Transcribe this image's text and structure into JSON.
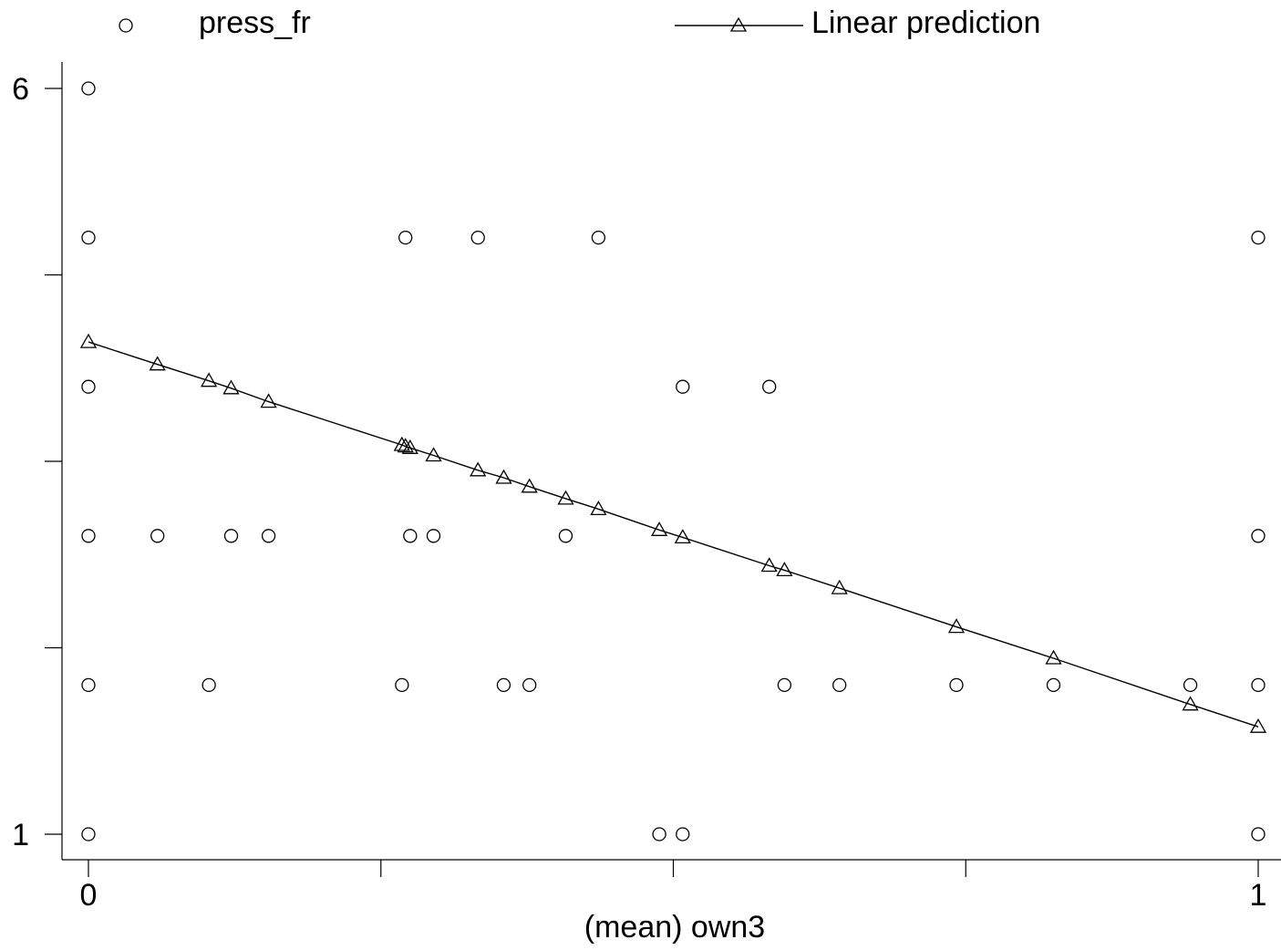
{
  "chart_data": {
    "type": "scatter",
    "xlabel": "(mean) own3",
    "ylabel": "",
    "xlim": [
      0,
      1
    ],
    "ylim": [
      1,
      6
    ],
    "x_ticks": [
      {
        "value": 0,
        "label": "0"
      },
      {
        "value": 0.25,
        "label": ""
      },
      {
        "value": 0.5,
        "label": ""
      },
      {
        "value": 0.75,
        "label": ""
      },
      {
        "value": 1,
        "label": "1"
      }
    ],
    "y_ticks": [
      {
        "value": 1,
        "label": "1"
      },
      {
        "value": 2.25,
        "label": ""
      },
      {
        "value": 3.5,
        "label": ""
      },
      {
        "value": 4.75,
        "label": ""
      },
      {
        "value": 6,
        "label": "6"
      }
    ],
    "legend": {
      "position": "top",
      "entries": [
        {
          "label": "press_fr",
          "marker": "circle",
          "line": false
        },
        {
          "label": "Linear prediction",
          "marker": "triangle",
          "line": true
        }
      ]
    },
    "series": [
      {
        "name": "press_fr",
        "marker": "circle",
        "points": [
          {
            "x": 0,
            "y": 6
          },
          {
            "x": 0,
            "y": 5
          },
          {
            "x": 0,
            "y": 4
          },
          {
            "x": 0,
            "y": 3
          },
          {
            "x": 0,
            "y": 2
          },
          {
            "x": 0,
            "y": 1
          },
          {
            "x": 0.271,
            "y": 5
          },
          {
            "x": 0.333,
            "y": 5
          },
          {
            "x": 0.436,
            "y": 5
          },
          {
            "x": 1,
            "y": 5
          },
          {
            "x": 0.508,
            "y": 4
          },
          {
            "x": 0.582,
            "y": 4
          },
          {
            "x": 0.059,
            "y": 3
          },
          {
            "x": 0.122,
            "y": 3
          },
          {
            "x": 0.154,
            "y": 3
          },
          {
            "x": 0.275,
            "y": 3
          },
          {
            "x": 0.295,
            "y": 3
          },
          {
            "x": 0.408,
            "y": 3
          },
          {
            "x": 1,
            "y": 3
          },
          {
            "x": 0.103,
            "y": 2
          },
          {
            "x": 0.268,
            "y": 2
          },
          {
            "x": 0.355,
            "y": 2
          },
          {
            "x": 0.377,
            "y": 2
          },
          {
            "x": 0.595,
            "y": 2
          },
          {
            "x": 0.642,
            "y": 2
          },
          {
            "x": 0.742,
            "y": 2
          },
          {
            "x": 0.825,
            "y": 2
          },
          {
            "x": 0.942,
            "y": 2
          },
          {
            "x": 1,
            "y": 2
          },
          {
            "x": 0.488,
            "y": 1
          },
          {
            "x": 0.508,
            "y": 1
          },
          {
            "x": 1,
            "y": 1
          }
        ]
      },
      {
        "name": "Linear prediction",
        "marker": "triangle",
        "points": [
          {
            "x": 0,
            "y": 4.3
          },
          {
            "x": 0.059,
            "y": 4.15
          },
          {
            "x": 0.103,
            "y": 4.04
          },
          {
            "x": 0.122,
            "y": 3.99
          },
          {
            "x": 0.154,
            "y": 3.9
          },
          {
            "x": 0.268,
            "y": 3.61
          },
          {
            "x": 0.271,
            "y": 3.6
          },
          {
            "x": 0.275,
            "y": 3.59
          },
          {
            "x": 0.295,
            "y": 3.54
          },
          {
            "x": 0.333,
            "y": 3.44
          },
          {
            "x": 0.355,
            "y": 3.39
          },
          {
            "x": 0.377,
            "y": 3.33
          },
          {
            "x": 0.408,
            "y": 3.25
          },
          {
            "x": 0.436,
            "y": 3.18
          },
          {
            "x": 0.488,
            "y": 3.04
          },
          {
            "x": 0.508,
            "y": 2.99
          },
          {
            "x": 0.582,
            "y": 2.8
          },
          {
            "x": 0.595,
            "y": 2.77
          },
          {
            "x": 0.642,
            "y": 2.65
          },
          {
            "x": 0.742,
            "y": 2.39
          },
          {
            "x": 0.825,
            "y": 2.18
          },
          {
            "x": 0.942,
            "y": 1.87
          },
          {
            "x": 1,
            "y": 1.72
          }
        ]
      }
    ]
  }
}
